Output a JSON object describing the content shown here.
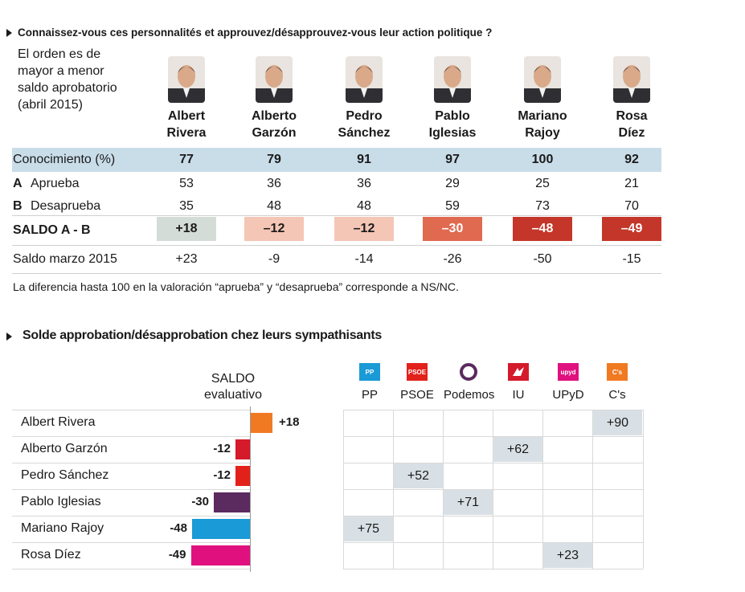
{
  "section1": {
    "title": "Connaissez-vous ces personnalités et approuvez/désapprouvez-vous leur action politique ?",
    "intro_lines": [
      "El orden es de",
      "mayor a menor",
      "saldo aprobatorio",
      "(abril 2015)"
    ],
    "politicians": [
      {
        "first": "Albert",
        "last": "Rivera"
      },
      {
        "first": "Alberto",
        "last": "Garzón"
      },
      {
        "first": "Pedro",
        "last": "Sánchez"
      },
      {
        "first": "Pablo",
        "last": "Iglesias"
      },
      {
        "first": "Mariano",
        "last": "Rajoy"
      },
      {
        "first": "Rosa",
        "last": "Díez"
      }
    ],
    "rows": [
      {
        "label": "Conocimiento (%)",
        "prefix": "",
        "values": [
          "77",
          "79",
          "91",
          "97",
          "100",
          "92"
        ]
      },
      {
        "label": "Aprueba",
        "prefix": "A",
        "values": [
          "53",
          "36",
          "36",
          "29",
          "25",
          "21"
        ]
      },
      {
        "label": "Desaprueba",
        "prefix": "B",
        "values": [
          "35",
          "48",
          "48",
          "59",
          "73",
          "70"
        ]
      }
    ],
    "saldo": {
      "label": "SALDO A - B",
      "values": [
        "+18",
        "–12",
        "–12",
        "–30",
        "–48",
        "–49"
      ],
      "colors": [
        "#d4dcd8",
        "#f4c6b6",
        "#f4c6b6",
        "#e06a50",
        "#c4362a",
        "#c4362a"
      ],
      "text_colors": [
        "#1a1a1a",
        "#1a1a1a",
        "#1a1a1a",
        "#ffffff",
        "#ffffff",
        "#ffffff"
      ]
    },
    "march": {
      "label": "Saldo marzo 2015",
      "values": [
        "+23",
        "-9",
        "-14",
        "-26",
        "-50",
        "-15"
      ]
    },
    "note": "La diferencia hasta 100 en la valoración “aprueba” y “desaprueba” corresponde a NS/NC."
  },
  "section2": {
    "title": "Solde approbation/désapprobation chez leurs sympathisants",
    "saldo_header": [
      "SALDO",
      "evaluativo"
    ],
    "parties": [
      {
        "name": "PP",
        "logo_text": "PP",
        "color": "#1a9ad6"
      },
      {
        "name": "PSOE",
        "logo_text": "PSOE",
        "color": "#e3211b"
      },
      {
        "name": "Podemos",
        "logo_text": "",
        "color": "#5b2a5e"
      },
      {
        "name": "IU",
        "logo_text": "",
        "color": "#d41a2b"
      },
      {
        "name": "UPyD",
        "logo_text": "upyd",
        "color": "#e0117f"
      },
      {
        "name": "C's",
        "logo_text": "C's",
        "color": "#f07a22"
      }
    ],
    "rows": [
      {
        "name": "Albert Rivera",
        "saldo": "+18",
        "party_index": 5,
        "party_value": "+90"
      },
      {
        "name": "Alberto Garzón",
        "saldo": "-12",
        "party_index": 3,
        "party_value": "+62"
      },
      {
        "name": "Pedro Sánchez",
        "saldo": "-12",
        "party_index": 1,
        "party_value": "+52"
      },
      {
        "name": "Pablo Iglesias",
        "saldo": "-30",
        "party_index": 2,
        "party_value": "+71"
      },
      {
        "name": "Mariano Rajoy",
        "saldo": "-48",
        "party_index": 0,
        "party_value": "+75"
      },
      {
        "name": "Rosa Díez",
        "saldo": "-49",
        "party_index": 4,
        "party_value": "+23"
      }
    ]
  },
  "chart_data": [
    {
      "type": "table",
      "title": "Connaissez-vous ces personnalités et approuvez/désapprouvez-vous leur action politique ?",
      "columns": [
        "Albert Rivera",
        "Alberto Garzón",
        "Pedro Sánchez",
        "Pablo Iglesias",
        "Mariano Rajoy",
        "Rosa Díez"
      ],
      "rows": {
        "Conocimiento (%)": [
          77,
          79,
          91,
          97,
          100,
          92
        ],
        "Aprueba": [
          53,
          36,
          36,
          29,
          25,
          21
        ],
        "Desaprueba": [
          35,
          48,
          48,
          59,
          73,
          70
        ],
        "SALDO A - B": [
          18,
          -12,
          -12,
          -30,
          -48,
          -49
        ],
        "Saldo marzo 2015": [
          23,
          -9,
          -14,
          -26,
          -50,
          -15
        ]
      }
    },
    {
      "type": "bar",
      "title": "Solde approbation/désapprobation chez leurs sympathisants",
      "categories": [
        "Albert Rivera",
        "Alberto Garzón",
        "Pedro Sánchez",
        "Pablo Iglesias",
        "Mariano Rajoy",
        "Rosa Díez"
      ],
      "values": [
        18,
        -12,
        -12,
        -30,
        -48,
        -49
      ],
      "bar_colors": [
        "#f07a22",
        "#d41a2b",
        "#e3211b",
        "#5b2a5e",
        "#1a9ad6",
        "#e0117f"
      ],
      "sympathisants": {
        "parties": [
          "PP",
          "PSOE",
          "Podemos",
          "IU",
          "UPyD",
          "C's"
        ],
        "values": {
          "Albert Rivera": {
            "C's": 90
          },
          "Alberto Garzón": {
            "IU": 62
          },
          "Pedro Sánchez": {
            "PSOE": 52
          },
          "Pablo Iglesias": {
            "Podemos": 71
          },
          "Mariano Rajoy": {
            "PP": 75
          },
          "Rosa Díez": {
            "UPyD": 23
          }
        }
      }
    }
  ]
}
